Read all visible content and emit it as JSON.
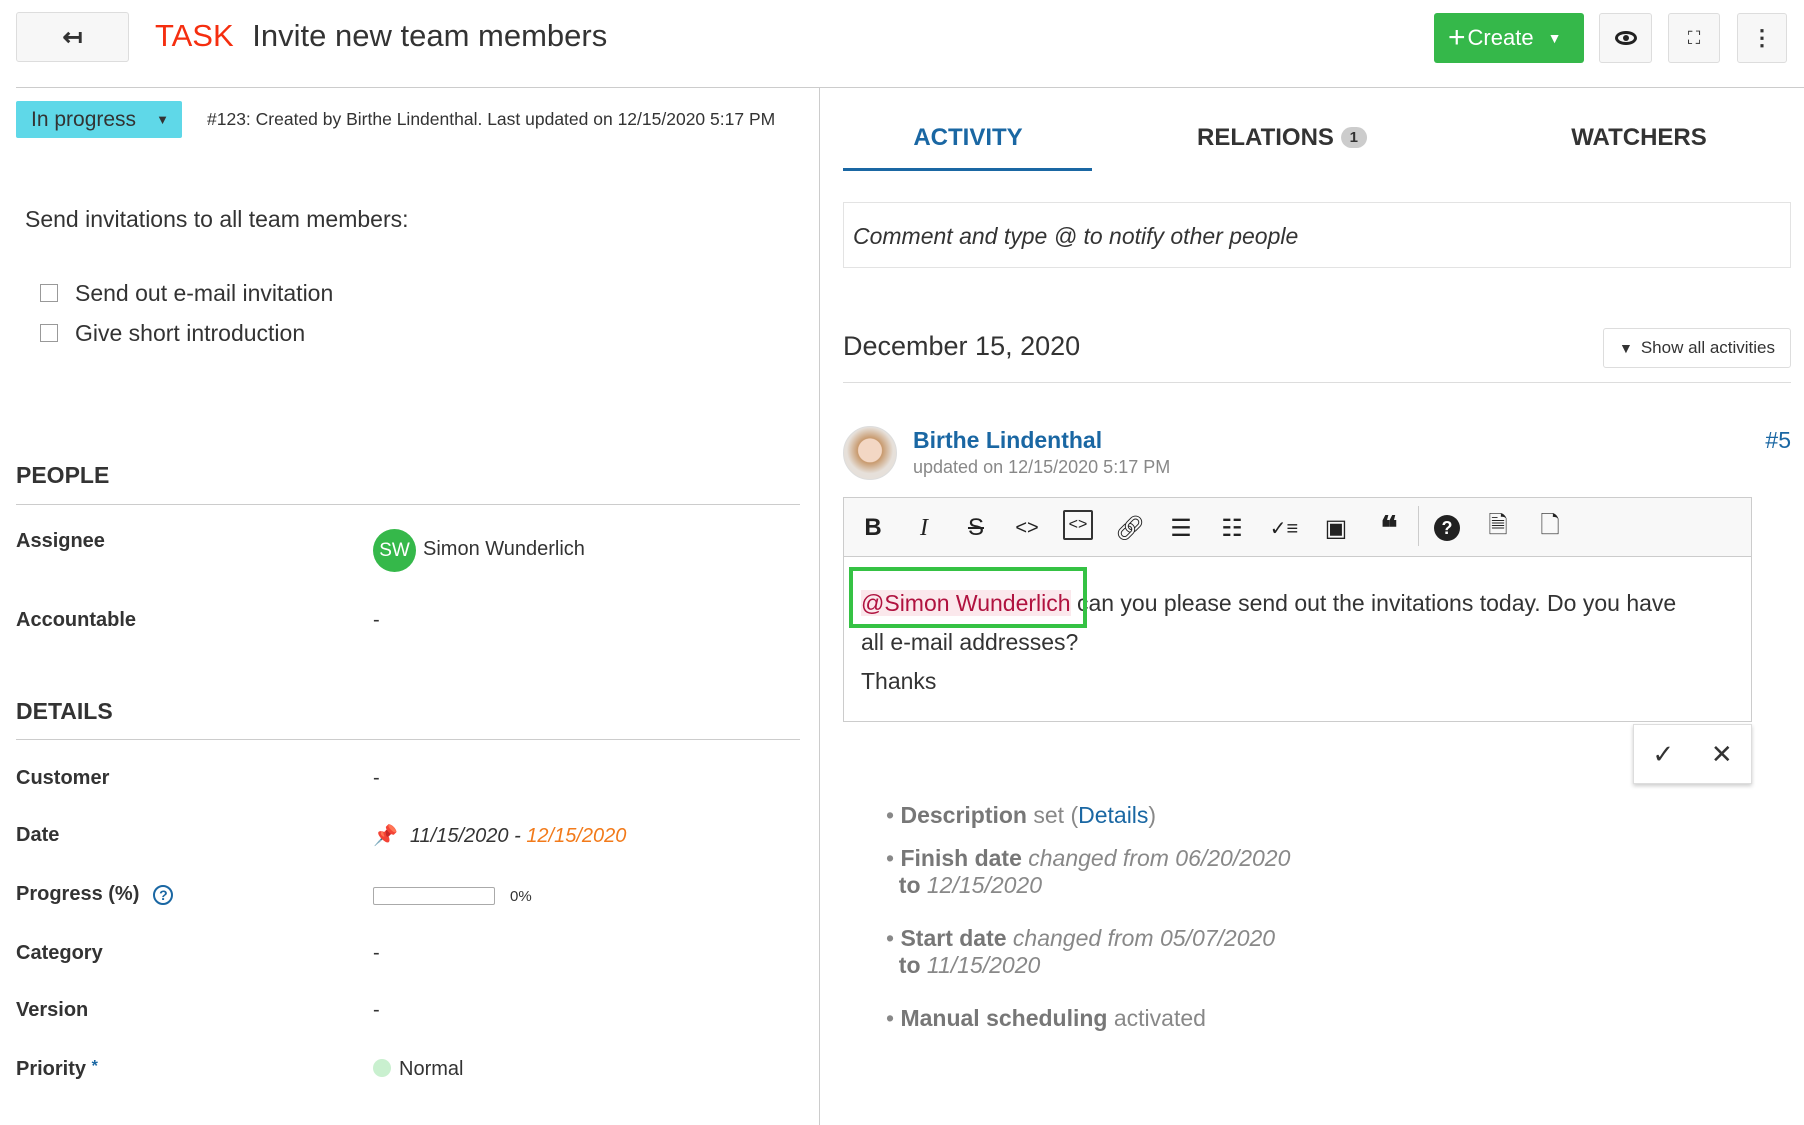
{
  "header": {
    "back_icon": "arrow-left-icon",
    "type": "TASK",
    "title": "Invite new team members",
    "create_label": "Create",
    "accent_green": "#35b84a",
    "type_color": "#f52e0f"
  },
  "status": {
    "label": "In progress",
    "color": "#5fd8e8",
    "meta": "#123: Created by Birthe Lindenthal. Last updated on 12/15/2020 5:17 PM"
  },
  "description": {
    "intro": "Send invitations to all team members:",
    "checklist": [
      "Send out e-mail invitation",
      "Give short introduction"
    ]
  },
  "people": {
    "title": "PEOPLE",
    "assignee_label": "Assignee",
    "assignee_initials": "SW",
    "assignee": "Simon Wunderlich",
    "accountable_label": "Accountable",
    "accountable": "-"
  },
  "details": {
    "title": "DETAILS",
    "customer_label": "Customer",
    "customer": "-",
    "date_label": "Date",
    "start_date": "11/15/2020",
    "date_sep": " - ",
    "finish_date": "12/15/2020",
    "progress_label": "Progress (%)",
    "progress": 0,
    "progress_text": "0%",
    "category_label": "Category",
    "category": "-",
    "version_label": "Version",
    "version": "-",
    "priority_label": "Priority",
    "required_mark": "*",
    "priority": "Normal"
  },
  "tabs": {
    "activity": "ACTIVITY",
    "relations": "RELATIONS",
    "relations_count": "1",
    "watchers": "WATCHERS"
  },
  "activity": {
    "comment_placeholder": "Comment and type @ to notify other people",
    "date": "December 15, 2020",
    "show_all": "Show all activities",
    "author": "Birthe Lindenthal",
    "updated": "updated on 12/15/2020 5:17 PM",
    "number": "#5",
    "editor": {
      "mention": "@Simon Wunderlich",
      "line1_rest": " can you please send out the invitations today. Do you have",
      "line2": "all e-mail addresses?",
      "line3": "Thanks"
    },
    "changes": [
      {
        "field": "Description",
        "text": " set (",
        "link": "Details",
        "end": ")"
      },
      {
        "field": "Finish date",
        "text": " changed from 06/20/2020",
        "to": "to",
        "to_val": " 12/15/2020"
      },
      {
        "field": "Start date",
        "text": " changed from 05/07/2020",
        "to": "to",
        "to_val": " 11/15/2020"
      },
      {
        "field": "Manual scheduling",
        "text": " activated"
      }
    ]
  }
}
